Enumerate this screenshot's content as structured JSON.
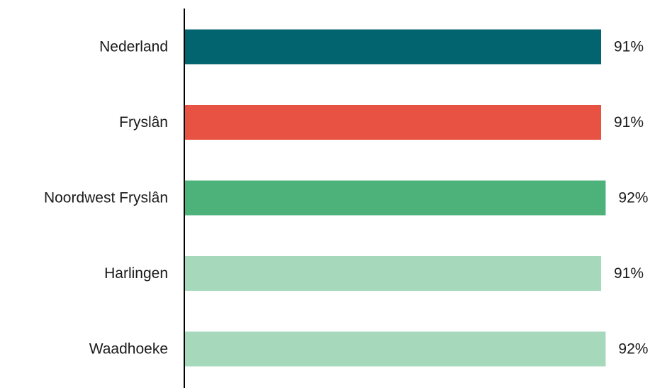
{
  "chart_data": {
    "type": "bar",
    "orientation": "horizontal",
    "categories": [
      "Nederland",
      "Fryslân",
      "Noordwest Fryslân",
      "Harlingen",
      "Waadhoeke"
    ],
    "values": [
      91,
      91,
      92,
      91,
      92
    ],
    "value_labels": [
      "91%",
      "91%",
      "92%",
      "91%",
      "92%"
    ],
    "colors": [
      "#02646F",
      "#E85243",
      "#4DB17A",
      "#A6D9BC",
      "#A6D9BC"
    ],
    "unit": "%",
    "xlim": [
      0,
      100
    ],
    "grid": false,
    "legend": "none"
  }
}
